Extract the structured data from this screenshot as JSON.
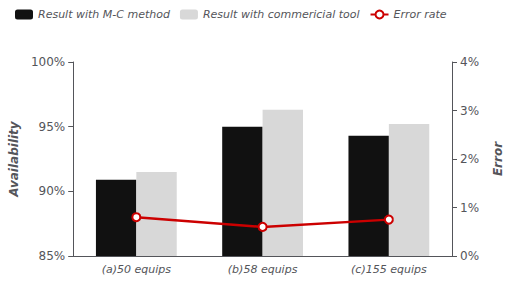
{
  "chart_data": {
    "type": "bar",
    "categories": [
      "(a)50 equips",
      "(b)58 equips",
      "(c)155 equips"
    ],
    "series": [
      {
        "name": "Result with M-C method",
        "type": "bar",
        "color": "#111111",
        "values": [
          0.909,
          0.95,
          0.943
        ]
      },
      {
        "name": "Result with commericial tool",
        "type": "bar",
        "color": "#d8d8d8",
        "values": [
          0.915,
          0.963,
          0.952
        ]
      },
      {
        "name": "Error rate",
        "type": "line",
        "axis": "y2",
        "color": "#cc0000",
        "marker": "circle",
        "values": [
          0.008,
          0.006,
          0.0075
        ]
      }
    ],
    "ylabel": "Availability",
    "y2label": "Error",
    "ylim": [
      0.85,
      1.0
    ],
    "yticks": [
      {
        "value": 0.85,
        "label": "85%"
      },
      {
        "value": 0.9,
        "label": "90%"
      },
      {
        "value": 0.95,
        "label": "95%"
      },
      {
        "value": 1.0,
        "label": "100%"
      }
    ],
    "y2lim": [
      0.0,
      0.04
    ],
    "y2ticks": [
      {
        "value": 0.0,
        "label": "0%"
      },
      {
        "value": 0.01,
        "label": "1%"
      },
      {
        "value": 0.02,
        "label": "2%"
      },
      {
        "value": 0.03,
        "label": "3%"
      },
      {
        "value": 0.04,
        "label": "4%"
      }
    ],
    "grid": false,
    "legend": "upper left"
  }
}
